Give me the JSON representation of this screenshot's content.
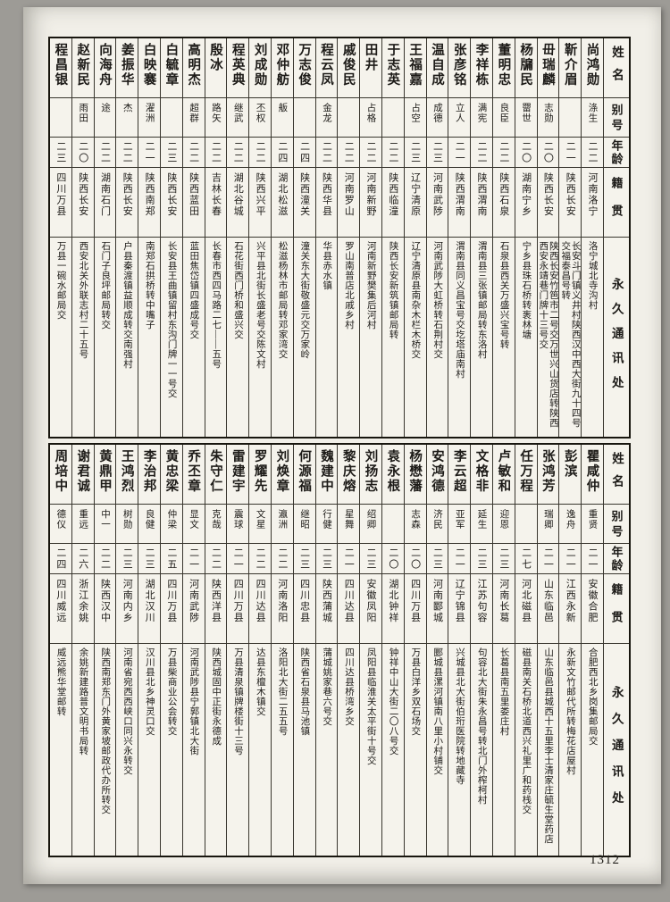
{
  "page": {
    "number": "1312"
  },
  "colors": {
    "paper": "#f1efe8",
    "ink": "#1d1b18",
    "frame": "#18160f"
  },
  "headers": {
    "name": "姓名",
    "alias": "别号",
    "age": "年龄",
    "native": "籍贯",
    "address": "永久通讯处"
  },
  "tables": [
    {
      "entries": [
        {
          "name": "尚鸿勋",
          "alias": "涤生",
          "age": "二二",
          "native": "河南洛宁",
          "address": "洛宁城北寺沟村"
        },
        {
          "name": "靳介眉",
          "alias": "",
          "age": "二一",
          "native": "陕西长安",
          "address": "长安斗门镇义井村陕西汉中西大街九十四号交福泰昌号转"
        },
        {
          "name": "毌瑞麟",
          "alias": "志勋",
          "age": "二〇",
          "native": "陕西长安",
          "address": "陕西长安竹笆市二号交万世兴山货店转陕西西安永靖巷门牌十三号交"
        },
        {
          "name": "杨牖民",
          "alias": "罶世",
          "age": "二〇",
          "native": "湖南宁乡",
          "address": "宁乡县珠石桥转袠林塘"
        },
        {
          "name": "董明忠",
          "alias": "良臣",
          "age": "二二",
          "native": "陕西石泉",
          "address": "石泉县西关万盛兴宝号转"
        },
        {
          "name": "李祥栋",
          "alias": "满宪",
          "age": "二二",
          "native": "陕西渭南",
          "address": "渭南县三张镇邮局转东洛村"
        },
        {
          "name": "张彦铭",
          "alias": "立人",
          "age": "二一",
          "native": "陕西渭南",
          "address": "渭南县同义昌宝号交圪塔庙南村"
        },
        {
          "name": "温自成",
          "alias": "成德",
          "age": "二三",
          "native": "河南武陟",
          "address": "河南武陟大虹桥转石荆村交"
        },
        {
          "name": "王福嘉",
          "alias": "占空",
          "age": "二三",
          "native": "辽宁清原",
          "address": "辽宁清原县南杂木栏木桥交"
        },
        {
          "name": "于志英",
          "alias": "",
          "age": "二二",
          "native": "陕西临潼",
          "address": "陕西长安新筑镇邮局转"
        },
        {
          "name": "田井",
          "alias": "占格",
          "age": "二二",
          "native": "河南新野",
          "address": "河南新野樊集后河村"
        },
        {
          "name": "戚俊民",
          "alias": "",
          "age": "二二",
          "native": "河南罗山",
          "address": "罗山南普店北戚乡村"
        },
        {
          "name": "程云凤",
          "alias": "金龙",
          "age": "二二",
          "native": "陕西华县",
          "address": "华县赤水镇"
        },
        {
          "name": "万志俊",
          "alias": "",
          "age": "二四",
          "native": "陕西潼关",
          "address": "潼关东大街敬盛元交万家岭"
        },
        {
          "name": "邓仲舫",
          "alias": "舨",
          "age": "二四",
          "native": "湖北松滋",
          "address": "松滋杨林市邮局转邓家湾交"
        },
        {
          "name": "刘成勋",
          "alias": "丕权",
          "age": "二二",
          "native": "陕西兴平",
          "address": "兴平县北街长盛老号交陈文村"
        },
        {
          "name": "程英典",
          "alias": "继武",
          "age": "二二",
          "native": "湖北谷城",
          "address": "石花街西门桥和盛兴交"
        },
        {
          "name": "殷冰",
          "alias": "路矢",
          "age": "二二",
          "native": "吉林长春",
          "address": "长春市西四马路二七——五号"
        },
        {
          "name": "高明杰",
          "alias": "超群",
          "age": "二二",
          "native": "陕西蓝田",
          "address": "蓝田焦岱镇四盛成号交"
        },
        {
          "name": "白毓章",
          "alias": "",
          "age": "二三",
          "native": "陕西长安",
          "address": "长安县王曲镇留村东沟门牌一一号交"
        },
        {
          "name": "白映褰",
          "alias": "濯洲",
          "age": "二一",
          "native": "陕西南郑",
          "address": "南郑石拱桥转中嘴子"
        },
        {
          "name": "姜振华",
          "alias": "杰",
          "age": "二二",
          "native": "陕西长安",
          "address": "户县秦渡镇益顺成转交南强村"
        },
        {
          "name": "向海舟",
          "alias": "途",
          "age": "二二",
          "native": "湖南石门",
          "address": "石门子良坪邮局转交"
        },
        {
          "name": "赵新民",
          "alias": "雨田",
          "age": "二〇",
          "native": "陕西长安",
          "address": "西安北关外联志村二十五号"
        },
        {
          "name": "程昌银",
          "alias": "",
          "age": "二三",
          "native": "四川万县",
          "address": "万县一碗水邮局交"
        }
      ]
    },
    {
      "entries": [
        {
          "name": "瞿咸仲",
          "alias": "重贤",
          "age": "二一",
          "native": "安徽合肥",
          "address": "合肥西北乡岗集邮局交"
        },
        {
          "name": "彭滨",
          "alias": "逸舟",
          "age": "二一",
          "native": "江西永新",
          "address": "永新文竹邮代所转梅花店屋村"
        },
        {
          "name": "张鸿芳",
          "alias": "瑞卿",
          "age": "二一",
          "native": "山东临邑",
          "address": "山东临邑县城西十五里李士清家庄毓生堂药店"
        },
        {
          "name": "任万程",
          "alias": "",
          "age": "二七",
          "native": "河北磁县",
          "address": "磁县南关石桥北道西兴礼里广和药栈交"
        },
        {
          "name": "卢敏和",
          "alias": "迎恩",
          "age": "二三",
          "native": "河南长葛",
          "address": "长葛县南五里娄庄村"
        },
        {
          "name": "文格非",
          "alias": "延生",
          "age": "二三",
          "native": "江苏句容",
          "address": "句容北大街朱永昌号转北门外榨柯村"
        },
        {
          "name": "李云超",
          "alias": "亚军",
          "age": "二一",
          "native": "辽宁锦县",
          "address": "兴城县北大街伯珩医院转地藏寺"
        },
        {
          "name": "安鸿德",
          "alias": "济民",
          "age": "二三",
          "native": "河南郾城",
          "address": "郾城县漯河镇南八里小村铺交"
        },
        {
          "name": "杨懋藩",
          "alias": "志森",
          "age": "二〇",
          "native": "四川万县",
          "address": "万县白洋乡双石场交"
        },
        {
          "name": "袁永根",
          "alias": "",
          "age": "二〇",
          "native": "湖北钟祥",
          "address": "钟祥中山大街二〇八号交"
        },
        {
          "name": "刘扬志",
          "alias": "绍卿",
          "age": "二三",
          "native": "安徽凤阳",
          "address": "凤阳县临淮关太平街十号交"
        },
        {
          "name": "黎庆熔",
          "alias": "星舞",
          "age": "二一",
          "native": "四川达县",
          "address": "四川达县桥湾乡交"
        },
        {
          "name": "魏建中",
          "alias": "行健",
          "age": "二三",
          "native": "陕西蒲城",
          "address": "蒲城姚家巷六号交"
        },
        {
          "name": "何源福",
          "alias": "继昭",
          "age": "二三",
          "native": "四川忠县",
          "address": "陕西省石泉县马池镇"
        },
        {
          "name": "刘焕章",
          "alias": "瀛洲",
          "age": "二二",
          "native": "河南洛阳",
          "address": "洛阳北大街二五五号"
        },
        {
          "name": "罗耀先",
          "alias": "文星",
          "age": "二二",
          "native": "四川达县",
          "address": "达县东檀木镇交"
        },
        {
          "name": "雷建宇",
          "alias": "震球",
          "age": "二一",
          "native": "四川万县",
          "address": "万县清泉镇牌楼街十三号"
        },
        {
          "name": "朱守仁",
          "alias": "克哉",
          "age": "二二",
          "native": "陕西洋县",
          "address": "陕西城固中正街永德成"
        },
        {
          "name": "乔丕章",
          "alias": "显文",
          "age": "二一",
          "native": "河南武陟",
          "address": "河南武陟县宁郭镇北大街"
        },
        {
          "name": "黄忠梁",
          "alias": "仲梁",
          "age": "二五",
          "native": "四川万县",
          "address": "万县柴商业公会转交"
        },
        {
          "name": "李治邦",
          "alias": "良健",
          "age": "二三",
          "native": "湖北汉川",
          "address": "汉川县北乡神灵口交"
        },
        {
          "name": "王鸿烈",
          "alias": "树勋",
          "age": "二三",
          "native": "河南内乡",
          "address": "河南省宛西西峡口同兴永转交"
        },
        {
          "name": "黄鼎甲",
          "alias": "中一",
          "age": "二二",
          "native": "陕西汉中",
          "address": "陕西南郑东门外黄家坡邮政代办所转交"
        },
        {
          "name": "谢君诚",
          "alias": "重远",
          "age": "二六",
          "native": "浙江余姚",
          "address": "余姚新建路普文明书局转"
        },
        {
          "name": "周培中",
          "alias": "德仪",
          "age": "二四",
          "native": "四川威远",
          "address": "威远熊华堂邮转"
        }
      ]
    }
  ]
}
